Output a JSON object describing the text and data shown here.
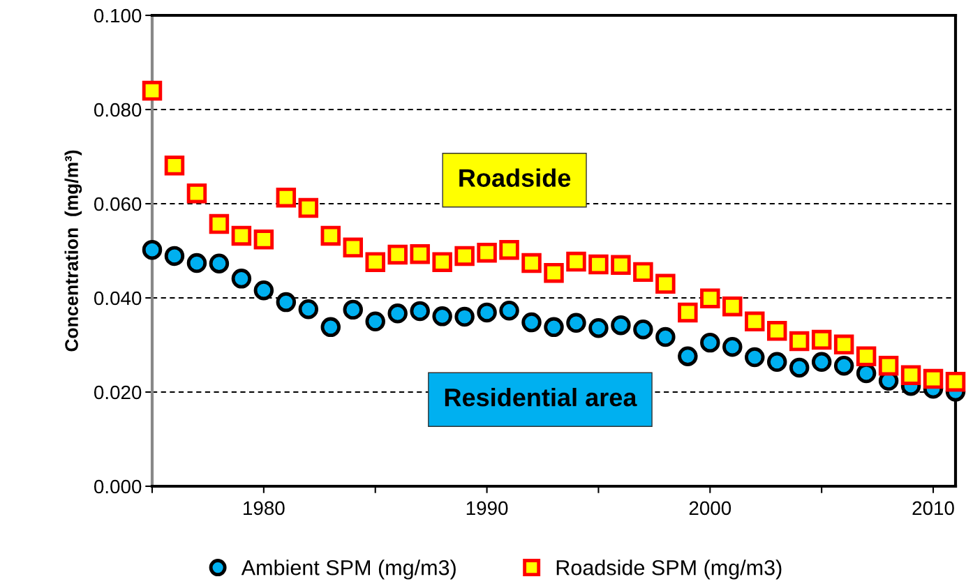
{
  "chart_data": {
    "type": "scatter",
    "ylabel": "Concentration  (mg/m³)",
    "x": [
      1975,
      1976,
      1977,
      1978,
      1979,
      1980,
      1981,
      1982,
      1983,
      1984,
      1985,
      1986,
      1987,
      1988,
      1989,
      1990,
      1991,
      1992,
      1993,
      1994,
      1995,
      1996,
      1997,
      1998,
      1999,
      2000,
      2001,
      2002,
      2003,
      2004,
      2005,
      2006,
      2007,
      2008,
      2009,
      2010,
      2011
    ],
    "series": [
      {
        "name": "Ambient SPM (mg/m3)",
        "color": "#00b0f0",
        "marker": "circle",
        "values": [
          0.0502,
          0.0489,
          0.0474,
          0.0473,
          0.0441,
          0.0416,
          0.0391,
          0.0376,
          0.0338,
          0.0375,
          0.035,
          0.0367,
          0.0372,
          0.0361,
          0.036,
          0.0369,
          0.0373,
          0.0348,
          0.0338,
          0.0347,
          0.0336,
          0.0342,
          0.0333,
          0.0317,
          0.0276,
          0.0305,
          0.0296,
          0.0274,
          0.0264,
          0.0252,
          0.0264,
          0.0256,
          0.024,
          0.0224,
          0.0213,
          0.0207,
          0.0201
        ]
      },
      {
        "name": "Roadside SPM (mg/m3)",
        "color": "#ffff00",
        "marker": "square",
        "values": [
          0.084,
          0.0681,
          0.0622,
          0.0557,
          0.0532,
          0.0524,
          0.0613,
          0.0591,
          0.0532,
          0.0507,
          0.0476,
          0.0492,
          0.0493,
          0.0476,
          0.0489,
          0.0496,
          0.0502,
          0.0474,
          0.0453,
          0.0477,
          0.0471,
          0.047,
          0.0455,
          0.043,
          0.0369,
          0.0399,
          0.0382,
          0.035,
          0.033,
          0.0308,
          0.0311,
          0.0301,
          0.0276,
          0.0256,
          0.0236,
          0.0228,
          0.0222
        ]
      }
    ],
    "annotations": [
      "Roadside",
      "Residential area"
    ],
    "xlim": [
      1975,
      2011
    ],
    "xticks": [
      {
        "value": 1975,
        "label": null
      },
      1980,
      {
        "value": 1985,
        "label": null
      },
      1990,
      {
        "value": 1995,
        "label": null
      },
      2000,
      {
        "value": 2005,
        "label": null
      },
      2010
    ],
    "ylim": [
      0,
      0.1
    ],
    "yticks": [
      {
        "value": 0,
        "label": "0.000"
      },
      {
        "value": 0.02,
        "label": "0.020"
      },
      {
        "value": 0.04,
        "label": "0.040"
      },
      {
        "value": 0.06,
        "label": "0.060"
      },
      {
        "value": 0.08,
        "label": "0.080"
      },
      {
        "value": 0.1,
        "label": "0.100"
      }
    ],
    "grid": "y",
    "line_style": "dashed",
    "legend": "bottom"
  }
}
